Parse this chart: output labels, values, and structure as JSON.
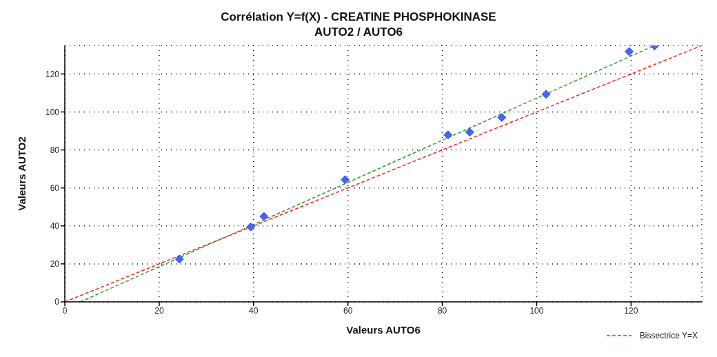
{
  "chart_data": {
    "type": "scatter",
    "title": "Corrélation Y=f(X)  -  CREATINE PHOSPHOKINASE",
    "subtitle": "AUTO2 / AUTO6",
    "xlabel": "Valeurs AUTO6",
    "ylabel": "Valeurs AUTO2",
    "xlim": [
      0,
      135
    ],
    "ylim": [
      0,
      135
    ],
    "xticks": [
      0,
      20,
      40,
      60,
      80,
      100,
      120
    ],
    "yticks": [
      0,
      20,
      40,
      60,
      80,
      100,
      120
    ],
    "grid": true,
    "legend": "bottom right",
    "series": [
      {
        "marker": "diamond",
        "color": "#4466ff",
        "x": [
          24.3,
          39.4,
          42.2,
          59.4,
          81.2,
          85.8,
          92.6,
          102,
          119.6,
          125
        ],
        "values": [
          22.5,
          39.5,
          45,
          64.3,
          87.9,
          89.4,
          97.1,
          109.3,
          131.8,
          134.8
        ]
      },
      {
        "type": "line",
        "color": "#2e9a2e",
        "line_style": "dashed",
        "x": [
          3.3,
          125
        ],
        "values": [
          0,
          135
        ]
      },
      {
        "type": "line",
        "name": "Bissectrice Y=X",
        "color": "#ff2020",
        "line_style": "dashed",
        "x": [
          0,
          135
        ],
        "values": [
          0,
          135
        ]
      }
    ]
  }
}
